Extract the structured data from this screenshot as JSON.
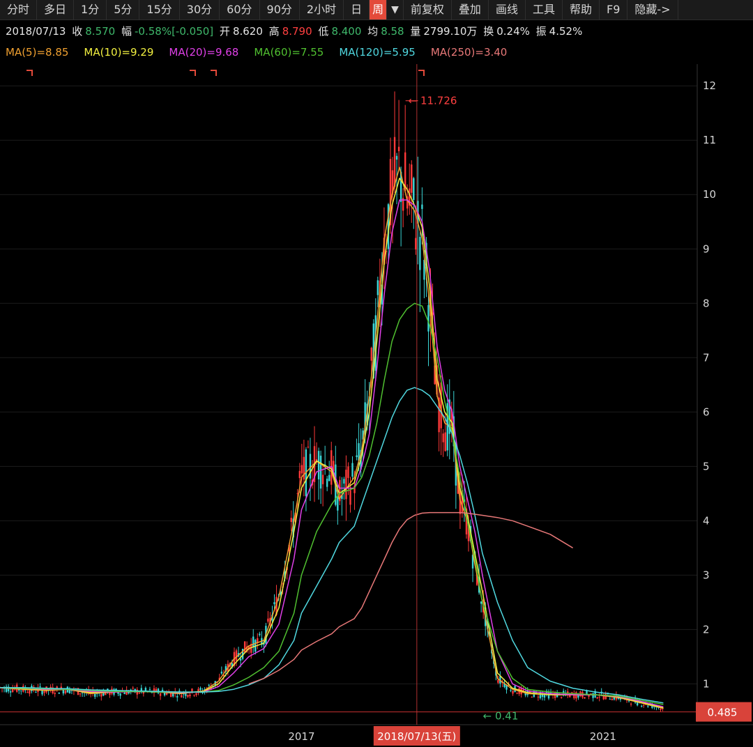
{
  "toolbar": {
    "tabs": [
      "分时",
      "多日",
      "1分",
      "5分",
      "15分",
      "30分",
      "60分",
      "90分",
      "2小时",
      "日",
      "周"
    ],
    "dropdown": "▼",
    "actions": [
      "前复权",
      "叠加",
      "画线",
      "工具",
      "帮助",
      "F9",
      "隐藏->"
    ]
  },
  "info": {
    "date": "2018/07/13",
    "close_label": "收",
    "close": "8.570",
    "change_label": "幅",
    "change": "-0.58%[-0.050]",
    "open_label": "开",
    "open": "8.620",
    "high_label": "高",
    "high": "8.790",
    "low_label": "低",
    "low": "8.400",
    "avg_label": "均",
    "avg": "8.58",
    "volume_label": "量",
    "volume": "2799.10万",
    "turnover_label": "换",
    "turnover": "0.24%",
    "amplitude_label": "振",
    "amplitude": "4.52%"
  },
  "ma_legend": [
    {
      "label": "MA(5)=8.85",
      "color": "#f0a030"
    },
    {
      "label": "MA(10)=9.29",
      "color": "#f2f040"
    },
    {
      "label": "MA(20)=9.68",
      "color": "#e040e8"
    },
    {
      "label": "MA(60)=7.55",
      "color": "#50c030"
    },
    {
      "label": "MA(120)=5.95",
      "color": "#50d8e0"
    },
    {
      "label": "MA(250)=3.40",
      "color": "#e87878"
    }
  ],
  "chart_data": {
    "type": "line",
    "title": "",
    "xlabel": "",
    "ylabel": "",
    "ylim": [
      0.3,
      12.4
    ],
    "y_ticks": [
      1,
      2,
      3,
      4,
      5,
      6,
      7,
      8,
      9,
      10,
      11,
      12
    ],
    "x_tick_labels": [
      {
        "year": 2017,
        "label": "2017"
      },
      {
        "year": 2021,
        "label": "2021"
      }
    ],
    "cursor_date": "2018/07/13(五)",
    "current_price": "0.485",
    "max_annotation": {
      "value": 11.726,
      "label": "11.726"
    },
    "min_annotation": {
      "value": 0.41,
      "label": "0.41"
    },
    "x_years": [
      2013.0,
      2013.3,
      2013.6,
      2013.9,
      2014.2,
      2014.5,
      2014.8,
      2015.1,
      2015.4,
      2015.7,
      2015.9,
      2016.1,
      2016.3,
      2016.5,
      2016.7,
      2016.9,
      2017.0,
      2017.2,
      2017.4,
      2017.5,
      2017.7,
      2017.8,
      2017.9,
      2018.0,
      2018.1,
      2018.2,
      2018.3,
      2018.4,
      2018.5,
      2018.6,
      2018.7,
      2018.8,
      2018.9,
      2019.0,
      2019.1,
      2019.2,
      2019.3,
      2019.4,
      2019.6,
      2019.8,
      2020.0,
      2020.3,
      2020.6,
      2020.9,
      2021.2,
      2021.5,
      2021.8
    ],
    "series": [
      {
        "name": "MA(5)",
        "color": "#f0a030",
        "values": [
          0.93,
          0.9,
          0.88,
          0.9,
          0.82,
          0.85,
          0.86,
          0.85,
          0.82,
          0.87,
          1.05,
          1.45,
          1.7,
          1.8,
          2.6,
          4.0,
          4.8,
          5.1,
          4.9,
          4.4,
          4.8,
          5.3,
          6.3,
          7.6,
          9.2,
          10.0,
          10.5,
          9.9,
          9.7,
          9.2,
          8.0,
          6.3,
          5.8,
          5.7,
          4.4,
          4.0,
          3.2,
          2.5,
          1.1,
          0.9,
          0.82,
          0.8,
          0.8,
          0.8,
          0.75,
          0.65,
          0.55
        ]
      },
      {
        "name": "MA(10)",
        "color": "#f2f040",
        "values": [
          0.93,
          0.91,
          0.89,
          0.9,
          0.84,
          0.85,
          0.86,
          0.85,
          0.83,
          0.86,
          1.0,
          1.35,
          1.65,
          1.75,
          2.4,
          3.8,
          4.6,
          5.1,
          4.95,
          4.5,
          4.7,
          5.2,
          6.0,
          7.3,
          8.8,
          9.8,
          10.3,
          10.1,
          9.8,
          9.4,
          8.3,
          6.6,
          6.0,
          5.8,
          4.6,
          4.1,
          3.4,
          2.7,
          1.2,
          0.92,
          0.84,
          0.8,
          0.8,
          0.8,
          0.76,
          0.66,
          0.56
        ]
      },
      {
        "name": "MA(20)",
        "color": "#e040e8",
        "values": [
          0.93,
          0.92,
          0.9,
          0.9,
          0.86,
          0.85,
          0.86,
          0.85,
          0.84,
          0.85,
          0.95,
          1.2,
          1.5,
          1.65,
          2.1,
          3.3,
          4.2,
          4.9,
          5.0,
          4.6,
          4.6,
          5.0,
          5.6,
          6.8,
          8.2,
          9.3,
          9.9,
          9.9,
          9.8,
          9.5,
          8.6,
          7.2,
          6.4,
          6.0,
          5.0,
          4.4,
          3.8,
          3.0,
          1.6,
          1.0,
          0.87,
          0.82,
          0.8,
          0.8,
          0.77,
          0.68,
          0.58
        ]
      },
      {
        "name": "MA(60)",
        "color": "#50c030",
        "values": [
          0.93,
          0.92,
          0.91,
          0.9,
          0.88,
          0.86,
          0.86,
          0.85,
          0.85,
          0.85,
          0.88,
          0.98,
          1.12,
          1.3,
          1.6,
          2.3,
          3.0,
          3.8,
          4.3,
          4.5,
          4.6,
          4.8,
          5.2,
          5.8,
          6.6,
          7.3,
          7.7,
          7.9,
          8.0,
          7.95,
          7.6,
          7.0,
          6.2,
          5.6,
          4.8,
          4.0,
          3.3,
          2.5,
          1.6,
          1.1,
          0.9,
          0.85,
          0.82,
          0.8,
          0.78,
          0.7,
          0.62
        ]
      },
      {
        "name": "MA(120)",
        "color": "#50d8e0",
        "values": [
          0.93,
          0.93,
          0.92,
          0.91,
          0.89,
          0.88,
          0.87,
          0.86,
          0.85,
          0.85,
          0.86,
          0.9,
          0.98,
          1.1,
          1.35,
          1.8,
          2.3,
          2.8,
          3.3,
          3.6,
          3.9,
          4.3,
          4.7,
          5.1,
          5.5,
          5.9,
          6.2,
          6.4,
          6.45,
          6.4,
          6.3,
          6.1,
          5.9,
          5.6,
          5.2,
          4.7,
          4.1,
          3.4,
          2.5,
          1.8,
          1.3,
          1.05,
          0.92,
          0.85,
          0.8,
          0.72,
          0.65
        ]
      },
      {
        "name": "MA(250)",
        "color": "#e87878",
        "values": [
          null,
          null,
          null,
          null,
          null,
          null,
          null,
          null,
          null,
          null,
          null,
          null,
          1.0,
          1.1,
          1.25,
          1.45,
          1.62,
          1.78,
          1.92,
          2.05,
          2.2,
          2.4,
          2.7,
          3.0,
          3.3,
          3.6,
          3.85,
          4.02,
          4.1,
          4.14,
          4.15,
          4.15,
          4.15,
          4.15,
          4.15,
          4.14,
          4.12,
          4.1,
          4.06,
          4.0,
          3.9,
          3.75,
          3.5,
          null,
          null,
          null,
          null
        ]
      }
    ]
  }
}
